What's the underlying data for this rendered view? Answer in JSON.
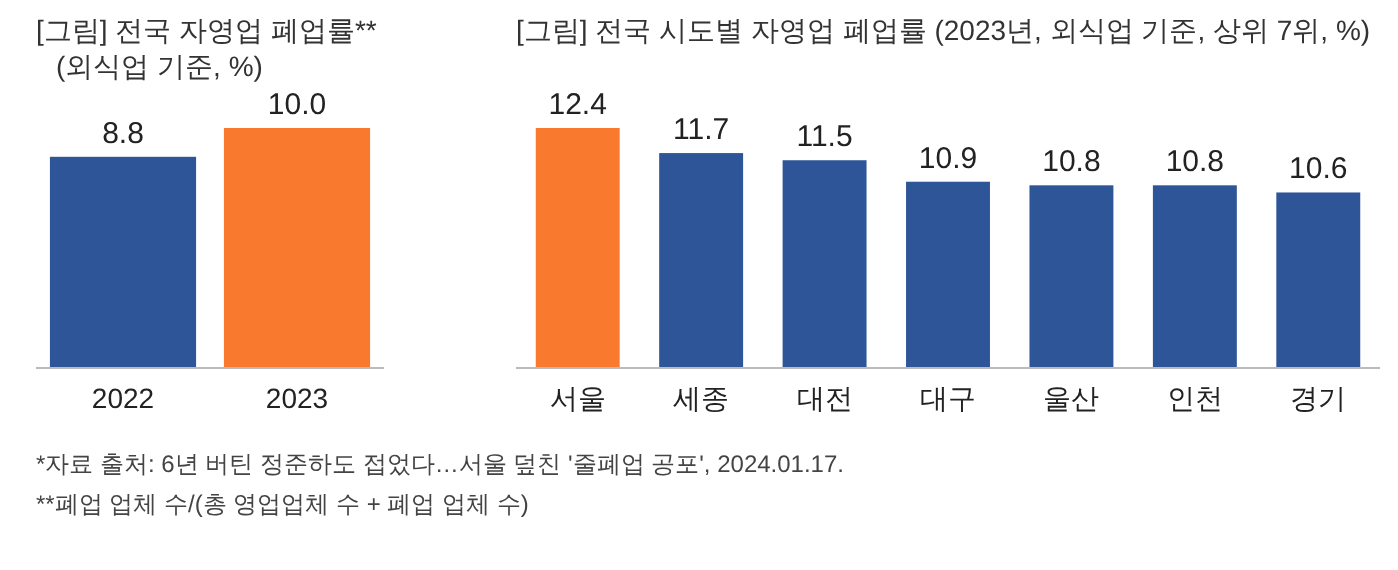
{
  "chart_data": [
    {
      "type": "bar",
      "title": "[그림] 전국 자영업 폐업률**",
      "subtitle": "(외식업 기준, %)",
      "categories": [
        "2022",
        "2023"
      ],
      "values": [
        8.8,
        10.0
      ],
      "value_labels": [
        "8.8",
        "10.0"
      ],
      "colors": [
        "#2e5597",
        "#f97a2e"
      ],
      "ylim": [
        0,
        10.0
      ],
      "data_labels": true,
      "annotations": [
        "*자료 출처: 6년 버틴 정준하도 접었다…서울 덮친 '줄폐업 공포', 2024.01.17.",
        "**폐업 업체 수/(총 영업업체 수 + 폐업 업체 수)"
      ]
    },
    {
      "type": "bar",
      "title": "[그림] 전국 시도별 자영업 폐업률 (2023년, 외식업 기준, 상위 7위, %)",
      "categories": [
        "서울",
        "세종",
        "대전",
        "대구",
        "울산",
        "인천",
        "경기"
      ],
      "values": [
        12.4,
        11.7,
        11.5,
        10.9,
        10.8,
        10.8,
        10.6
      ],
      "colors": [
        "#f97a2e",
        "#2e5597",
        "#2e5597",
        "#2e5597",
        "#2e5597",
        "#2e5597",
        "#2e5597"
      ],
      "ylim": [
        5.7,
        12.4
      ],
      "data_labels": true
    }
  ]
}
